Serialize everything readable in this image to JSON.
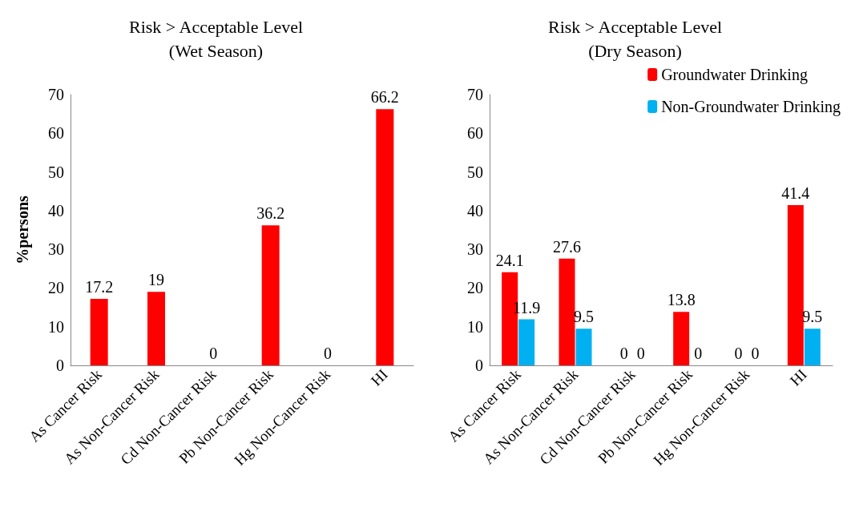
{
  "chart_data": [
    {
      "type": "bar",
      "title": "Risk > Acceptable Level\n(Wet Season)",
      "ylabel": "%persons",
      "categories": [
        "As Cancer Risk",
        "As Non-Cancer Risk",
        "Cd Non-Cancer Risk",
        "Pb Non-Cancer Risk",
        "Hg Non-Cancer Risk",
        "HI"
      ],
      "series": [
        {
          "color": "#ff0000",
          "values": [
            17.2,
            19,
            0,
            36.2,
            0,
            66.2
          ]
        }
      ],
      "ylim": [
        0,
        70
      ],
      "yticks": [
        0,
        10,
        20,
        30,
        40,
        50,
        60,
        70
      ],
      "grid": false,
      "legend": false,
      "data_labels": true
    },
    {
      "type": "bar",
      "title": "Risk > Acceptable Level\n(Dry Season)",
      "categories": [
        "As Cancer Risk",
        "As Non-Cancer Risk",
        "Cd Non-Cancer Risk",
        "Pb Non-Cancer Risk",
        "Hg Non-Cancer Risk",
        "HI"
      ],
      "series": [
        {
          "name": "Groundwater Drinking",
          "color": "#ff0000",
          "values": [
            24.1,
            27.6,
            0,
            13.8,
            0,
            41.4
          ]
        },
        {
          "name": "Non-Groundwater Drinking",
          "color": "#00b0f0",
          "values": [
            11.9,
            9.5,
            0,
            0,
            0,
            9.5
          ]
        }
      ],
      "ylim": [
        0,
        70
      ],
      "yticks": [
        0,
        10,
        20,
        30,
        40,
        50,
        60,
        70
      ],
      "grid": false,
      "legend": "top right",
      "data_labels": true
    }
  ]
}
